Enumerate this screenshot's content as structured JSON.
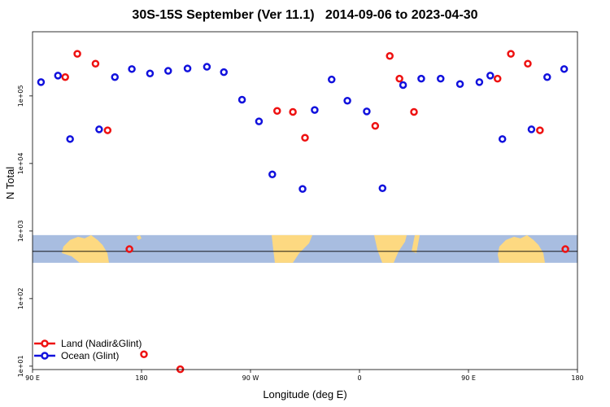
{
  "chart_data": {
    "type": "scatter",
    "title": "30S-15S September (Ver 11.1)   2014-09-06 to 2023-04-30",
    "xlabel": "Longitude (deg E)",
    "ylabel": "N Total",
    "x_ticks": [
      {
        "value": 90,
        "label": "90 E"
      },
      {
        "value": 180,
        "label": "180"
      },
      {
        "value": 270,
        "label": "90 W"
      },
      {
        "value": 360,
        "label": "0"
      },
      {
        "value": 450,
        "label": "90 E"
      },
      {
        "value": 540,
        "label": "180"
      }
    ],
    "y_ticks": [
      {
        "value": 10,
        "label": "1e+01"
      },
      {
        "value": 100,
        "label": "1e+02"
      },
      {
        "value": 1000,
        "label": "1e+03"
      },
      {
        "value": 10000,
        "label": "1e+04"
      },
      {
        "value": 100000,
        "label": "1e+05"
      }
    ],
    "xlim": [
      90,
      540
    ],
    "ylim_log10": [
      0.95,
      5.95
    ],
    "y_scale": "log",
    "reference_line": 500,
    "map_band": {
      "ylim_log10": [
        2.53,
        2.94
      ],
      "ocean_color": "#a8bde0",
      "land_color": "#fdd981"
    },
    "legend_position": "bottom-left",
    "series": [
      {
        "name": "Land (Nadir&Glint)",
        "color": "#ee1111",
        "points": [
          {
            "x": 117,
            "y": 190000
          },
          {
            "x": 127,
            "y": 420000
          },
          {
            "x": 142,
            "y": 300000
          },
          {
            "x": 152,
            "y": 31000
          },
          {
            "x": 170,
            "y": 540
          },
          {
            "x": 182,
            "y": 15
          },
          {
            "x": 212,
            "y": 9
          },
          {
            "x": 292,
            "y": 60000
          },
          {
            "x": 305,
            "y": 58000
          },
          {
            "x": 315,
            "y": 24000
          },
          {
            "x": 373,
            "y": 36000
          },
          {
            "x": 385,
            "y": 390000
          },
          {
            "x": 393,
            "y": 180000
          },
          {
            "x": 405,
            "y": 58000
          },
          {
            "x": 474,
            "y": 180000
          },
          {
            "x": 485,
            "y": 420000
          },
          {
            "x": 499,
            "y": 300000
          },
          {
            "x": 509,
            "y": 31000
          },
          {
            "x": 530,
            "y": 540
          }
        ]
      },
      {
        "name": "Ocean (Glint)",
        "color": "#1111dd",
        "points": [
          {
            "x": 97,
            "y": 160000
          },
          {
            "x": 111,
            "y": 200000
          },
          {
            "x": 121,
            "y": 23000
          },
          {
            "x": 145,
            "y": 32000
          },
          {
            "x": 158,
            "y": 190000
          },
          {
            "x": 172,
            "y": 250000
          },
          {
            "x": 187,
            "y": 215000
          },
          {
            "x": 202,
            "y": 235000
          },
          {
            "x": 218,
            "y": 255000
          },
          {
            "x": 234,
            "y": 270000
          },
          {
            "x": 248,
            "y": 225000
          },
          {
            "x": 263,
            "y": 88000
          },
          {
            "x": 277,
            "y": 42000
          },
          {
            "x": 288,
            "y": 6900
          },
          {
            "x": 313,
            "y": 4200
          },
          {
            "x": 323,
            "y": 62000
          },
          {
            "x": 337,
            "y": 175000
          },
          {
            "x": 350,
            "y": 85000
          },
          {
            "x": 366,
            "y": 59000
          },
          {
            "x": 379,
            "y": 4300
          },
          {
            "x": 396,
            "y": 145000
          },
          {
            "x": 411,
            "y": 180000
          },
          {
            "x": 427,
            "y": 180000
          },
          {
            "x": 443,
            "y": 150000
          },
          {
            "x": 459,
            "y": 160000
          },
          {
            "x": 468,
            "y": 200000
          },
          {
            "x": 478,
            "y": 23000
          },
          {
            "x": 502,
            "y": 32000
          },
          {
            "x": 515,
            "y": 190000
          },
          {
            "x": 529,
            "y": 250000
          }
        ]
      }
    ]
  }
}
